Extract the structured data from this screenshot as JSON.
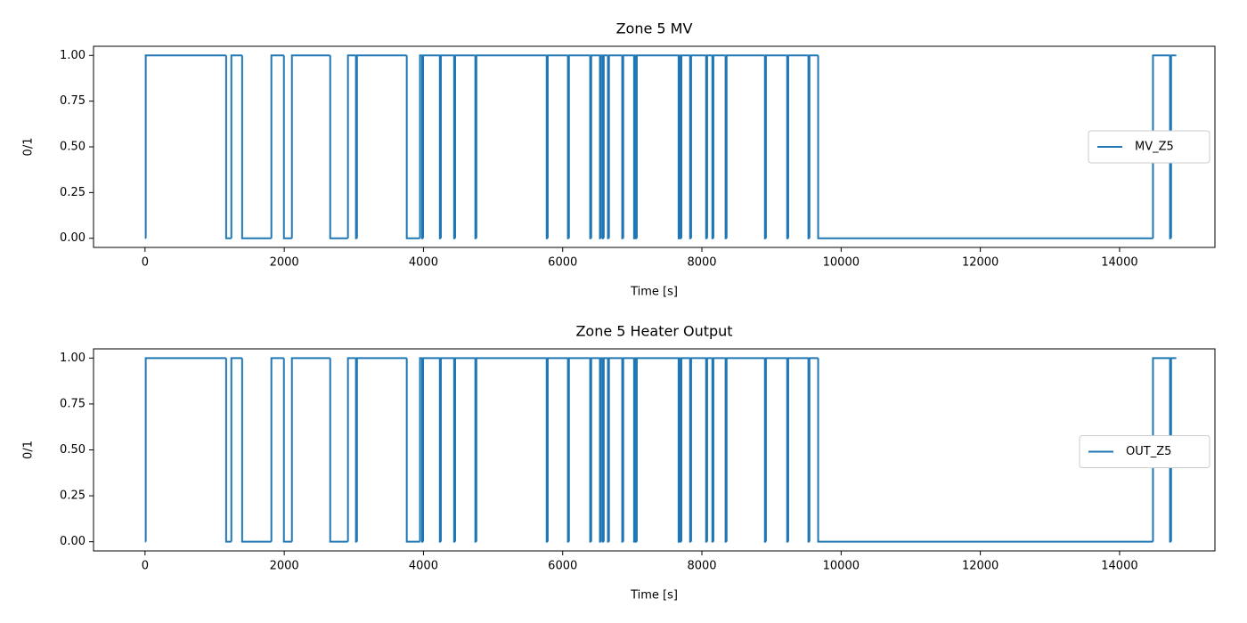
{
  "chart_data": [
    {
      "type": "line",
      "drawstyle": "steps-post",
      "title": "Zone 5 MV",
      "xlabel": "Time [s]",
      "ylabel": "0/1",
      "legend": "center right",
      "x": [
        0,
        10,
        1165,
        1240,
        1395,
        1815,
        1995,
        2110,
        2660,
        2915,
        3030,
        3045,
        3760,
        3950,
        3980,
        3995,
        4235,
        4250,
        4440,
        4455,
        4745,
        4760,
        5770,
        5785,
        6075,
        6090,
        6395,
        6410,
        6535,
        6550,
        6575,
        6590,
        6650,
        6665,
        6855,
        6870,
        7025,
        7040,
        7050,
        7065,
        7665,
        7680,
        7690,
        7705,
        7830,
        7845,
        8060,
        8075,
        8150,
        8165,
        8340,
        8355,
        8905,
        8920,
        9225,
        9240,
        9530,
        9545,
        9670,
        14480,
        14725,
        14740,
        14815
      ],
      "series": [
        {
          "name": "MV_Z5",
          "color": "#1f77b4",
          "values": [
            0,
            1,
            0,
            1,
            0,
            1,
            0,
            1,
            0,
            1,
            0,
            1,
            0,
            1,
            0,
            1,
            0,
            1,
            0,
            1,
            0,
            1,
            0,
            1,
            0,
            1,
            0,
            1,
            0,
            1,
            0,
            1,
            0,
            1,
            0,
            1,
            0,
            1,
            0,
            1,
            0,
            1,
            0,
            1,
            0,
            1,
            0,
            1,
            0,
            1,
            0,
            1,
            0,
            1,
            0,
            1,
            0,
            1,
            0,
            1,
            0,
            1,
            1
          ]
        }
      ],
      "xlim": [
        -740,
        15370
      ],
      "ylim": [
        -0.05,
        1.05
      ],
      "xticks": [
        0,
        2000,
        4000,
        6000,
        8000,
        10000,
        12000,
        14000
      ],
      "yticks": [
        {
          "value": 0,
          "label": "0.00"
        },
        {
          "value": 0.25,
          "label": "0.25"
        },
        {
          "value": 0.5,
          "label": "0.50"
        },
        {
          "value": 0.75,
          "label": "0.75"
        },
        {
          "value": 1,
          "label": "1.00"
        }
      ]
    },
    {
      "type": "line",
      "drawstyle": "steps-post",
      "title": "Zone 5 Heater Output",
      "xlabel": "Time [s]",
      "ylabel": "0/1",
      "legend": "center right",
      "x": [
        0,
        10,
        1165,
        1240,
        1395,
        1815,
        1995,
        2110,
        2660,
        2915,
        3030,
        3045,
        3760,
        3950,
        3980,
        3995,
        4235,
        4250,
        4440,
        4455,
        4745,
        4760,
        5770,
        5785,
        6075,
        6090,
        6395,
        6410,
        6535,
        6550,
        6575,
        6590,
        6650,
        6665,
        6855,
        6870,
        7025,
        7040,
        7050,
        7065,
        7665,
        7680,
        7690,
        7705,
        7830,
        7845,
        8060,
        8075,
        8150,
        8165,
        8340,
        8355,
        8905,
        8920,
        9225,
        9240,
        9530,
        9545,
        9670,
        14480,
        14725,
        14740,
        14815
      ],
      "series": [
        {
          "name": "OUT_Z5",
          "color": "#1f77b4",
          "values": [
            0,
            1,
            0,
            1,
            0,
            1,
            0,
            1,
            0,
            1,
            0,
            1,
            0,
            1,
            0,
            1,
            0,
            1,
            0,
            1,
            0,
            1,
            0,
            1,
            0,
            1,
            0,
            1,
            0,
            1,
            0,
            1,
            0,
            1,
            0,
            1,
            0,
            1,
            0,
            1,
            0,
            1,
            0,
            1,
            0,
            1,
            0,
            1,
            0,
            1,
            0,
            1,
            0,
            1,
            0,
            1,
            0,
            1,
            0,
            1,
            0,
            1,
            1
          ]
        }
      ],
      "xlim": [
        -740,
        15370
      ],
      "ylim": [
        -0.05,
        1.05
      ],
      "xticks": [
        0,
        2000,
        4000,
        6000,
        8000,
        10000,
        12000,
        14000
      ],
      "yticks": [
        {
          "value": 0,
          "label": "0.00"
        },
        {
          "value": 0.25,
          "label": "0.25"
        },
        {
          "value": 0.5,
          "label": "0.50"
        },
        {
          "value": 0.75,
          "label": "0.75"
        },
        {
          "value": 1,
          "label": "1.00"
        }
      ]
    }
  ]
}
